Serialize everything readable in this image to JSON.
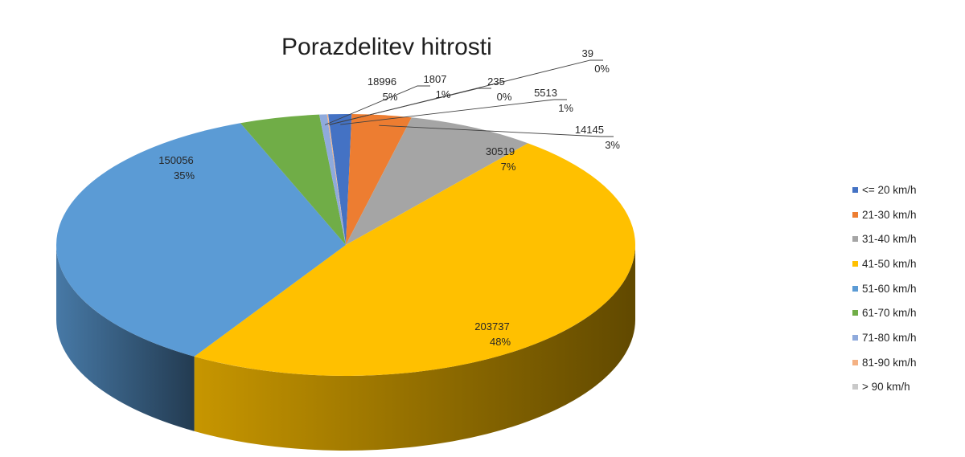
{
  "chart_data": {
    "type": "pie",
    "title": "Porazdelitev hitrosti",
    "legend_position": "right",
    "three_d": true,
    "slices": [
      {
        "name": "<= 20 km/h",
        "value": 5513,
        "percent_label": "1%",
        "color": "#4472C4"
      },
      {
        "name": "21-30 km/h",
        "value": 14145,
        "percent_label": "3%",
        "color": "#ED7D31"
      },
      {
        "name": "31-40 km/h",
        "value": 30519,
        "percent_label": "7%",
        "color": "#A5A5A5"
      },
      {
        "name": "41-50 km/h",
        "value": 203737,
        "percent_label": "48%",
        "color": "#FFC000"
      },
      {
        "name": "51-60 km/h",
        "value": 150056,
        "percent_label": "35%",
        "color": "#5B9BD5"
      },
      {
        "name": "61-70 km/h",
        "value": 18996,
        "percent_label": "5%",
        "color": "#70AD47"
      },
      {
        "name": "71-80 km/h",
        "value": 1807,
        "percent_label": "1%",
        "color": "#8FAADC"
      },
      {
        "name": "81-90 km/h",
        "value": 235,
        "percent_label": "0%",
        "color": "#F4B183"
      },
      {
        "name": "> 90 km/h",
        "value": 39,
        "percent_label": "0%",
        "color": "#C9C9C9"
      }
    ]
  }
}
